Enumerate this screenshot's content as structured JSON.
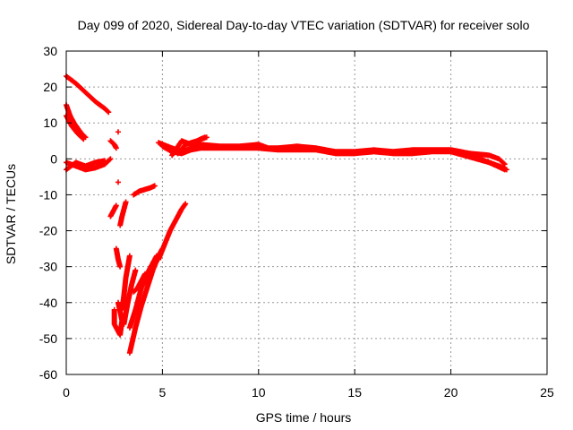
{
  "chart_data": {
    "type": "scatter",
    "title": "Day 099 of 2020, Sidereal Day-to-day VTEC variation (SDTVAR) for receiver solo",
    "xlabel": "GPS time / hours",
    "ylabel": "SDTVAR / TECUs",
    "xlim": [
      0,
      25
    ],
    "ylim": [
      -60,
      30
    ],
    "xticks": [
      0,
      5,
      10,
      15,
      20,
      25
    ],
    "yticks": [
      -60,
      -50,
      -40,
      -30,
      -20,
      -10,
      0,
      10,
      20,
      30
    ],
    "grid": true,
    "marker": "+",
    "color": "#ff0000",
    "series": [
      {
        "name": "solo",
        "tracks": [
          [
            [
              0.0,
              23.0
            ],
            [
              0.5,
              21.0
            ],
            [
              1.0,
              18.5
            ],
            [
              1.5,
              16.0
            ],
            [
              2.0,
              14.0
            ],
            [
              2.2,
              13.0
            ]
          ],
          [
            [
              0.0,
              15.0
            ],
            [
              0.2,
              12.0
            ],
            [
              0.4,
              10.0
            ],
            [
              0.6,
              8.5
            ],
            [
              0.8,
              7.0
            ],
            [
              1.0,
              6.0
            ]
          ],
          [
            [
              0.0,
              12.0
            ],
            [
              0.3,
              9.0
            ],
            [
              0.6,
              7.0
            ],
            [
              0.9,
              5.5
            ]
          ],
          [
            [
              0.0,
              -1.0
            ],
            [
              0.5,
              -2.0
            ],
            [
              1.0,
              -3.0
            ],
            [
              1.5,
              -2.5
            ],
            [
              2.0,
              -1.5
            ],
            [
              2.3,
              0.0
            ]
          ],
          [
            [
              0.0,
              -3.0
            ],
            [
              0.5,
              -1.0
            ],
            [
              1.0,
              -2.0
            ],
            [
              1.5,
              -1.0
            ],
            [
              2.0,
              -0.5
            ]
          ],
          [
            [
              2.3,
              5.0
            ],
            [
              2.5,
              4.0
            ],
            [
              2.6,
              3.0
            ]
          ],
          [
            [
              2.7,
              7.5
            ]
          ],
          [
            [
              2.7,
              -6.5
            ]
          ],
          [
            [
              2.3,
              -16.0
            ],
            [
              2.5,
              -14.0
            ],
            [
              2.6,
              -13.0
            ]
          ],
          [
            [
              2.8,
              -18.5
            ],
            [
              2.9,
              -16.0
            ],
            [
              3.0,
              -14.0
            ],
            [
              3.1,
              -12.0
            ]
          ],
          [
            [
              3.5,
              -10.0
            ],
            [
              3.8,
              -9.0
            ],
            [
              4.1,
              -8.5
            ],
            [
              4.4,
              -8.0
            ],
            [
              4.6,
              -7.5
            ]
          ],
          [
            [
              2.5,
              -42.0
            ],
            [
              2.5,
              -46.0
            ],
            [
              2.7,
              -48.0
            ],
            [
              2.8,
              -49.0
            ],
            [
              2.9,
              -45.0
            ],
            [
              2.7,
              -40.0
            ]
          ],
          [
            [
              2.6,
              -25.0
            ],
            [
              2.7,
              -28.0
            ],
            [
              2.8,
              -30.0
            ]
          ],
          [
            [
              2.9,
              -42.0
            ],
            [
              3.0,
              -38.0
            ],
            [
              3.1,
              -33.0
            ],
            [
              3.2,
              -30.0
            ],
            [
              3.3,
              -27.0
            ]
          ],
          [
            [
              3.0,
              -46.0
            ],
            [
              3.2,
              -40.0
            ],
            [
              3.4,
              -35.0
            ],
            [
              3.6,
              -31.0
            ]
          ],
          [
            [
              3.3,
              -54.0
            ],
            [
              3.6,
              -47.0
            ],
            [
              3.9,
              -41.0
            ],
            [
              4.2,
              -36.0
            ],
            [
              4.5,
              -31.0
            ],
            [
              4.8,
              -27.0
            ],
            [
              5.0,
              -25.0
            ]
          ],
          [
            [
              3.3,
              -47.0
            ],
            [
              3.6,
              -42.0
            ],
            [
              3.9,
              -36.0
            ],
            [
              4.3,
              -31.0
            ],
            [
              4.7,
              -27.0
            ]
          ],
          [
            [
              4.8,
              -28.0
            ],
            [
              5.1,
              -24.0
            ],
            [
              5.4,
              -20.0
            ],
            [
              5.7,
              -17.0
            ],
            [
              6.0,
              -14.0
            ],
            [
              6.2,
              -12.5
            ]
          ],
          [
            [
              3.5,
              -37.0
            ],
            [
              3.7,
              -36.0
            ],
            [
              3.9,
              -34.0
            ],
            [
              4.1,
              -32.0
            ]
          ],
          [
            [
              4.8,
              4.5
            ],
            [
              5.5,
              3.0
            ],
            [
              6.0,
              2.0
            ],
            [
              6.5,
              3.0
            ],
            [
              7.0,
              4.0
            ],
            [
              8.0,
              3.5
            ],
            [
              9.0,
              3.5
            ],
            [
              10.0,
              4.0
            ],
            [
              10.5,
              3.0
            ],
            [
              11.0,
              3.0
            ],
            [
              12.0,
              3.5
            ],
            [
              13.0,
              3.0
            ],
            [
              14.0,
              2.0
            ],
            [
              15.0,
              2.0
            ],
            [
              16.0,
              2.5
            ],
            [
              17.0,
              2.0
            ],
            [
              18.0,
              2.5
            ],
            [
              19.0,
              2.5
            ],
            [
              20.0,
              2.5
            ],
            [
              20.5,
              2.0
            ],
            [
              21.0,
              1.5
            ],
            [
              22.0,
              1.0
            ],
            [
              22.5,
              0.0
            ],
            [
              22.8,
              -1.5
            ]
          ],
          [
            [
              5.0,
              3.5
            ],
            [
              5.5,
              2.0
            ],
            [
              6.0,
              1.5
            ],
            [
              6.5,
              2.5
            ],
            [
              7.0,
              3.0
            ],
            [
              8.0,
              3.0
            ],
            [
              9.0,
              3.0
            ],
            [
              10.0,
              3.0
            ],
            [
              11.0,
              2.5
            ],
            [
              12.0,
              2.5
            ],
            [
              13.0,
              2.5
            ],
            [
              14.0,
              1.5
            ],
            [
              15.0,
              1.5
            ],
            [
              16.0,
              2.0
            ],
            [
              17.0,
              1.5
            ],
            [
              18.0,
              1.5
            ],
            [
              19.0,
              2.0
            ],
            [
              20.0,
              2.0
            ],
            [
              21.0,
              0.5
            ],
            [
              22.0,
              -1.0
            ],
            [
              22.8,
              -3.0
            ]
          ],
          [
            [
              5.5,
              1.0
            ],
            [
              6.0,
              5.0
            ],
            [
              6.5,
              4.0
            ],
            [
              7.0,
              5.5
            ],
            [
              7.3,
              6.0
            ]
          ],
          [
            [
              5.8,
              1.5
            ],
            [
              6.2,
              4.0
            ],
            [
              6.8,
              5.0
            ],
            [
              7.2,
              6.0
            ]
          ],
          [
            [
              21.0,
              1.5
            ],
            [
              21.5,
              0.0
            ],
            [
              22.0,
              -1.0
            ],
            [
              22.5,
              -2.0
            ],
            [
              22.9,
              -3.0
            ]
          ]
        ]
      }
    ]
  }
}
